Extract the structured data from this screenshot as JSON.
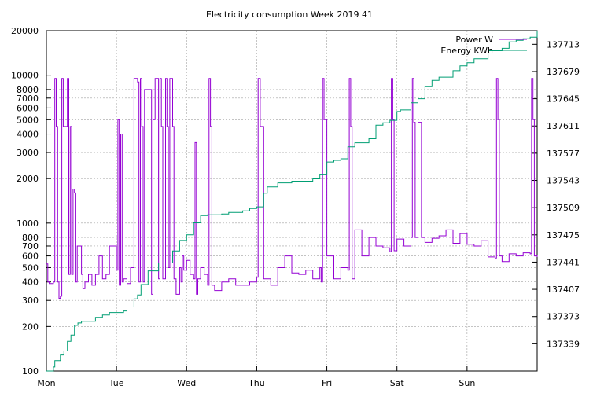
{
  "colors": {
    "power": "#9400d3",
    "energy": "#009e73",
    "grid": "#a0a0a0",
    "axis": "#000000"
  },
  "chart_data": {
    "type": "line",
    "title": "Electricity consumption Week 2019 41",
    "xlabel": "",
    "ylabel": "",
    "x_ticks": [
      "Mon",
      "Tue",
      "Wed",
      "Thu",
      "Fri",
      "Sat",
      "Sun"
    ],
    "xlim_days": [
      0,
      7
    ],
    "y_left": {
      "scale": "log",
      "ylim": [
        100,
        20000
      ],
      "ticks": [
        100,
        200,
        300,
        400,
        500,
        600,
        700,
        800,
        1000,
        2000,
        3000,
        4000,
        5000,
        6000,
        7000,
        8000,
        10000,
        20000
      ],
      "tick_labels": [
        "100",
        "200",
        "300",
        "400",
        "500",
        "600",
        "700",
        "800",
        "1000",
        "2000",
        "3000",
        "4000",
        "5000",
        "6000",
        "7000",
        "8000",
        "10000",
        "20000"
      ]
    },
    "y_right": {
      "scale": "linear",
      "ylim": [
        137305,
        137730
      ],
      "ticks": [
        137339,
        137373,
        137407,
        137441,
        137475,
        137509,
        137543,
        137577,
        137611,
        137645,
        137679,
        137713
      ],
      "tick_labels": [
        "137339",
        "137373",
        "137407",
        "137441",
        "137475",
        "137509",
        "137543",
        "137577",
        "137611",
        "137645",
        "137679",
        "137713"
      ]
    },
    "legend_position": "top-right",
    "grid": true,
    "series": [
      {
        "name": "Power W",
        "axis": "left",
        "x": [
          0,
          0.02,
          0.04,
          0.1,
          0.12,
          0.14,
          0.16,
          0.18,
          0.2,
          0.22,
          0.24,
          0.3,
          0.32,
          0.34,
          0.36,
          0.38,
          0.4,
          0.42,
          0.44,
          0.5,
          0.52,
          0.55,
          0.6,
          0.65,
          0.7,
          0.75,
          0.8,
          0.85,
          0.9,
          1.0,
          1.02,
          1.04,
          1.06,
          1.08,
          1.1,
          1.15,
          1.2,
          1.25,
          1.3,
          1.32,
          1.34,
          1.36,
          1.38,
          1.4,
          1.5,
          1.52,
          1.55,
          1.6,
          1.62,
          1.64,
          1.66,
          1.7,
          1.72,
          1.74,
          1.76,
          1.8,
          1.82,
          1.85,
          1.9,
          1.92,
          1.94,
          1.96,
          2.0,
          2.05,
          2.1,
          2.12,
          2.14,
          2.16,
          2.2,
          2.25,
          2.3,
          2.32,
          2.34,
          2.36,
          2.4,
          2.5,
          2.6,
          2.7,
          2.8,
          2.9,
          3.0,
          3.02,
          3.05,
          3.1,
          3.2,
          3.3,
          3.4,
          3.5,
          3.6,
          3.7,
          3.8,
          3.9,
          3.92,
          3.94,
          3.96,
          4.0,
          4.1,
          4.2,
          4.3,
          4.32,
          4.34,
          4.36,
          4.4,
          4.5,
          4.6,
          4.7,
          4.8,
          4.9,
          4.92,
          4.94,
          4.96,
          5.0,
          5.1,
          5.2,
          5.22,
          5.24,
          5.26,
          5.3,
          5.35,
          5.4,
          5.5,
          5.6,
          5.7,
          5.8,
          5.9,
          6.0,
          6.1,
          6.2,
          6.3,
          6.4,
          6.42,
          6.44,
          6.46,
          6.5,
          6.6,
          6.7,
          6.8,
          6.9,
          6.92,
          6.94,
          6.96,
          7.0
        ],
        "values": [
          530,
          400,
          390,
          400,
          9500,
          4500,
          400,
          310,
          320,
          9500,
          4500,
          9500,
          450,
          4500,
          450,
          1700,
          1600,
          400,
          700,
          450,
          360,
          400,
          450,
          380,
          450,
          600,
          420,
          450,
          700,
          480,
          5000,
          380,
          4000,
          400,
          420,
          390,
          500,
          9500,
          9000,
          400,
          9500,
          4500,
          400,
          8000,
          330,
          5000,
          9500,
          420,
          9500,
          4500,
          420,
          9500,
          4500,
          500,
          9500,
          4500,
          420,
          330,
          500,
          400,
          600,
          480,
          560,
          450,
          420,
          3500,
          330,
          420,
          500,
          450,
          380,
          9500,
          4500,
          380,
          350,
          400,
          420,
          380,
          380,
          400,
          430,
          9500,
          4500,
          420,
          380,
          500,
          600,
          460,
          450,
          480,
          420,
          500,
          400,
          9500,
          5000,
          600,
          420,
          500,
          480,
          9500,
          4500,
          420,
          900,
          600,
          800,
          700,
          680,
          640,
          9500,
          5000,
          650,
          780,
          700,
          800,
          9500,
          4800,
          800,
          4800,
          800,
          740,
          790,
          820,
          900,
          730,
          850,
          720,
          700,
          760,
          590,
          580,
          9500,
          5000,
          600,
          550,
          620,
          600,
          630,
          620,
          9500,
          5000,
          600,
          590
        ]
      },
      {
        "name": "Energy KWh",
        "axis": "right",
        "x": [
          0,
          0.05,
          0.1,
          0.12,
          0.2,
          0.25,
          0.3,
          0.35,
          0.4,
          0.45,
          0.5,
          0.7,
          0.8,
          0.9,
          1.0,
          1.1,
          1.15,
          1.25,
          1.3,
          1.35,
          1.45,
          1.6,
          1.8,
          1.9,
          2.0,
          2.1,
          2.2,
          2.3,
          2.5,
          2.6,
          2.8,
          2.9,
          3.0,
          3.1,
          3.15,
          3.3,
          3.4,
          3.5,
          3.8,
          3.9,
          4.0,
          4.1,
          4.2,
          4.3,
          4.4,
          4.6,
          4.7,
          4.8,
          4.9,
          5.0,
          5.05,
          5.2,
          5.3,
          5.4,
          5.5,
          5.6,
          5.8,
          5.9,
          6.0,
          6.1,
          6.3,
          6.4,
          6.5,
          6.6,
          6.7,
          6.8,
          6.9,
          7.0
        ],
        "values": [
          137305,
          137305,
          137310,
          137318,
          137325,
          137330,
          137342,
          137350,
          137362,
          137365,
          137367,
          137372,
          137375,
          137378,
          137378,
          137380,
          137385,
          137395,
          137400,
          137413,
          137430,
          137440,
          137455,
          137468,
          137475,
          137490,
          137499,
          137500,
          137501,
          137503,
          137505,
          137508,
          137510,
          137527,
          137535,
          137540,
          137540,
          137542,
          137545,
          137550,
          137566,
          137568,
          137570,
          137585,
          137590,
          137595,
          137612,
          137615,
          137618,
          137629,
          137631,
          137640,
          137645,
          137660,
          137668,
          137672,
          137680,
          137686,
          137690,
          137695,
          137705,
          137705,
          137708,
          137716,
          137718,
          137720,
          137722,
          137735
        ]
      }
    ]
  }
}
